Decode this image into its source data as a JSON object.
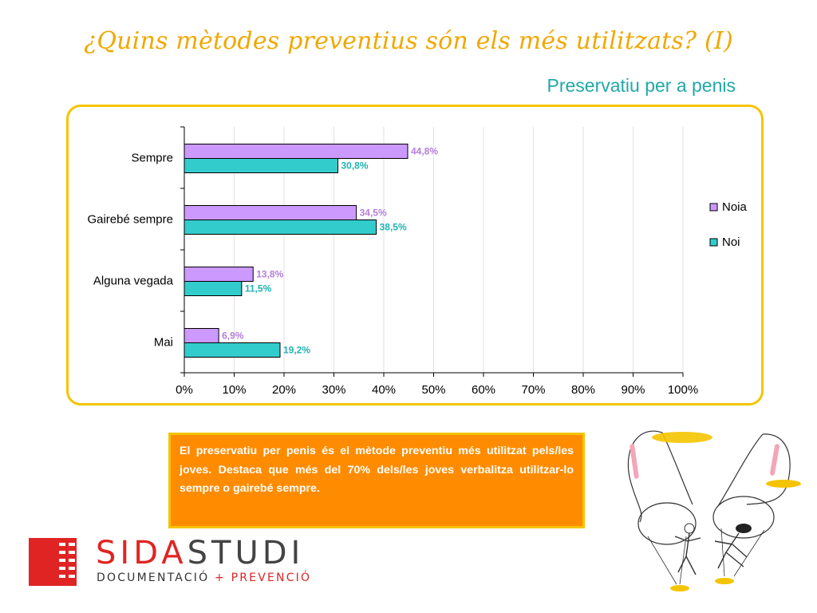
{
  "slide": {
    "title": "¿Quins mètodes preventius són els més utilitzats? (I)",
    "subtitle": "Preservatiu per a penis",
    "note": "El preservatiu per penis és el mètode preventiu més utilitzat pels/les joves. Destaca que més del 70% dels/les joves verbalitza utilitzar-lo sempre o gairebé sempre."
  },
  "logo": {
    "name_red": "SIDA",
    "name_gray": "STUDI",
    "tag_left": "DOCUMENTACIÓ",
    "tag_plus": "+",
    "tag_right": "PREVENCIÓ"
  },
  "colors": {
    "noia": "#cc99ff",
    "noi": "#33cccc",
    "noia_label": "#b57edc",
    "noi_label": "#20b2b2",
    "title": "#f0a800",
    "subtitle": "#22a8a8",
    "frame": "#f5c400",
    "note_bg": "#ff8c00"
  },
  "chart_data": {
    "type": "bar",
    "orientation": "horizontal",
    "categories": [
      "Sempre",
      "Gairebé sempre",
      "Alguna vegada",
      "Mai"
    ],
    "series": [
      {
        "name": "Noia",
        "values": [
          44.8,
          34.5,
          13.8,
          6.9
        ],
        "labels": [
          "44,8%",
          "34,5%",
          "13,8%",
          "6,9%"
        ]
      },
      {
        "name": "Noi",
        "values": [
          30.8,
          38.5,
          11.5,
          19.2
        ],
        "labels": [
          "30,8%",
          "38,5%",
          "11,5%",
          "19,2%"
        ]
      }
    ],
    "xlim": [
      0,
      100
    ],
    "xticks": [
      "0%",
      "10%",
      "20%",
      "30%",
      "40%",
      "50%",
      "60%",
      "70%",
      "80%",
      "90%",
      "100%"
    ],
    "grid": true,
    "legend": "right"
  }
}
